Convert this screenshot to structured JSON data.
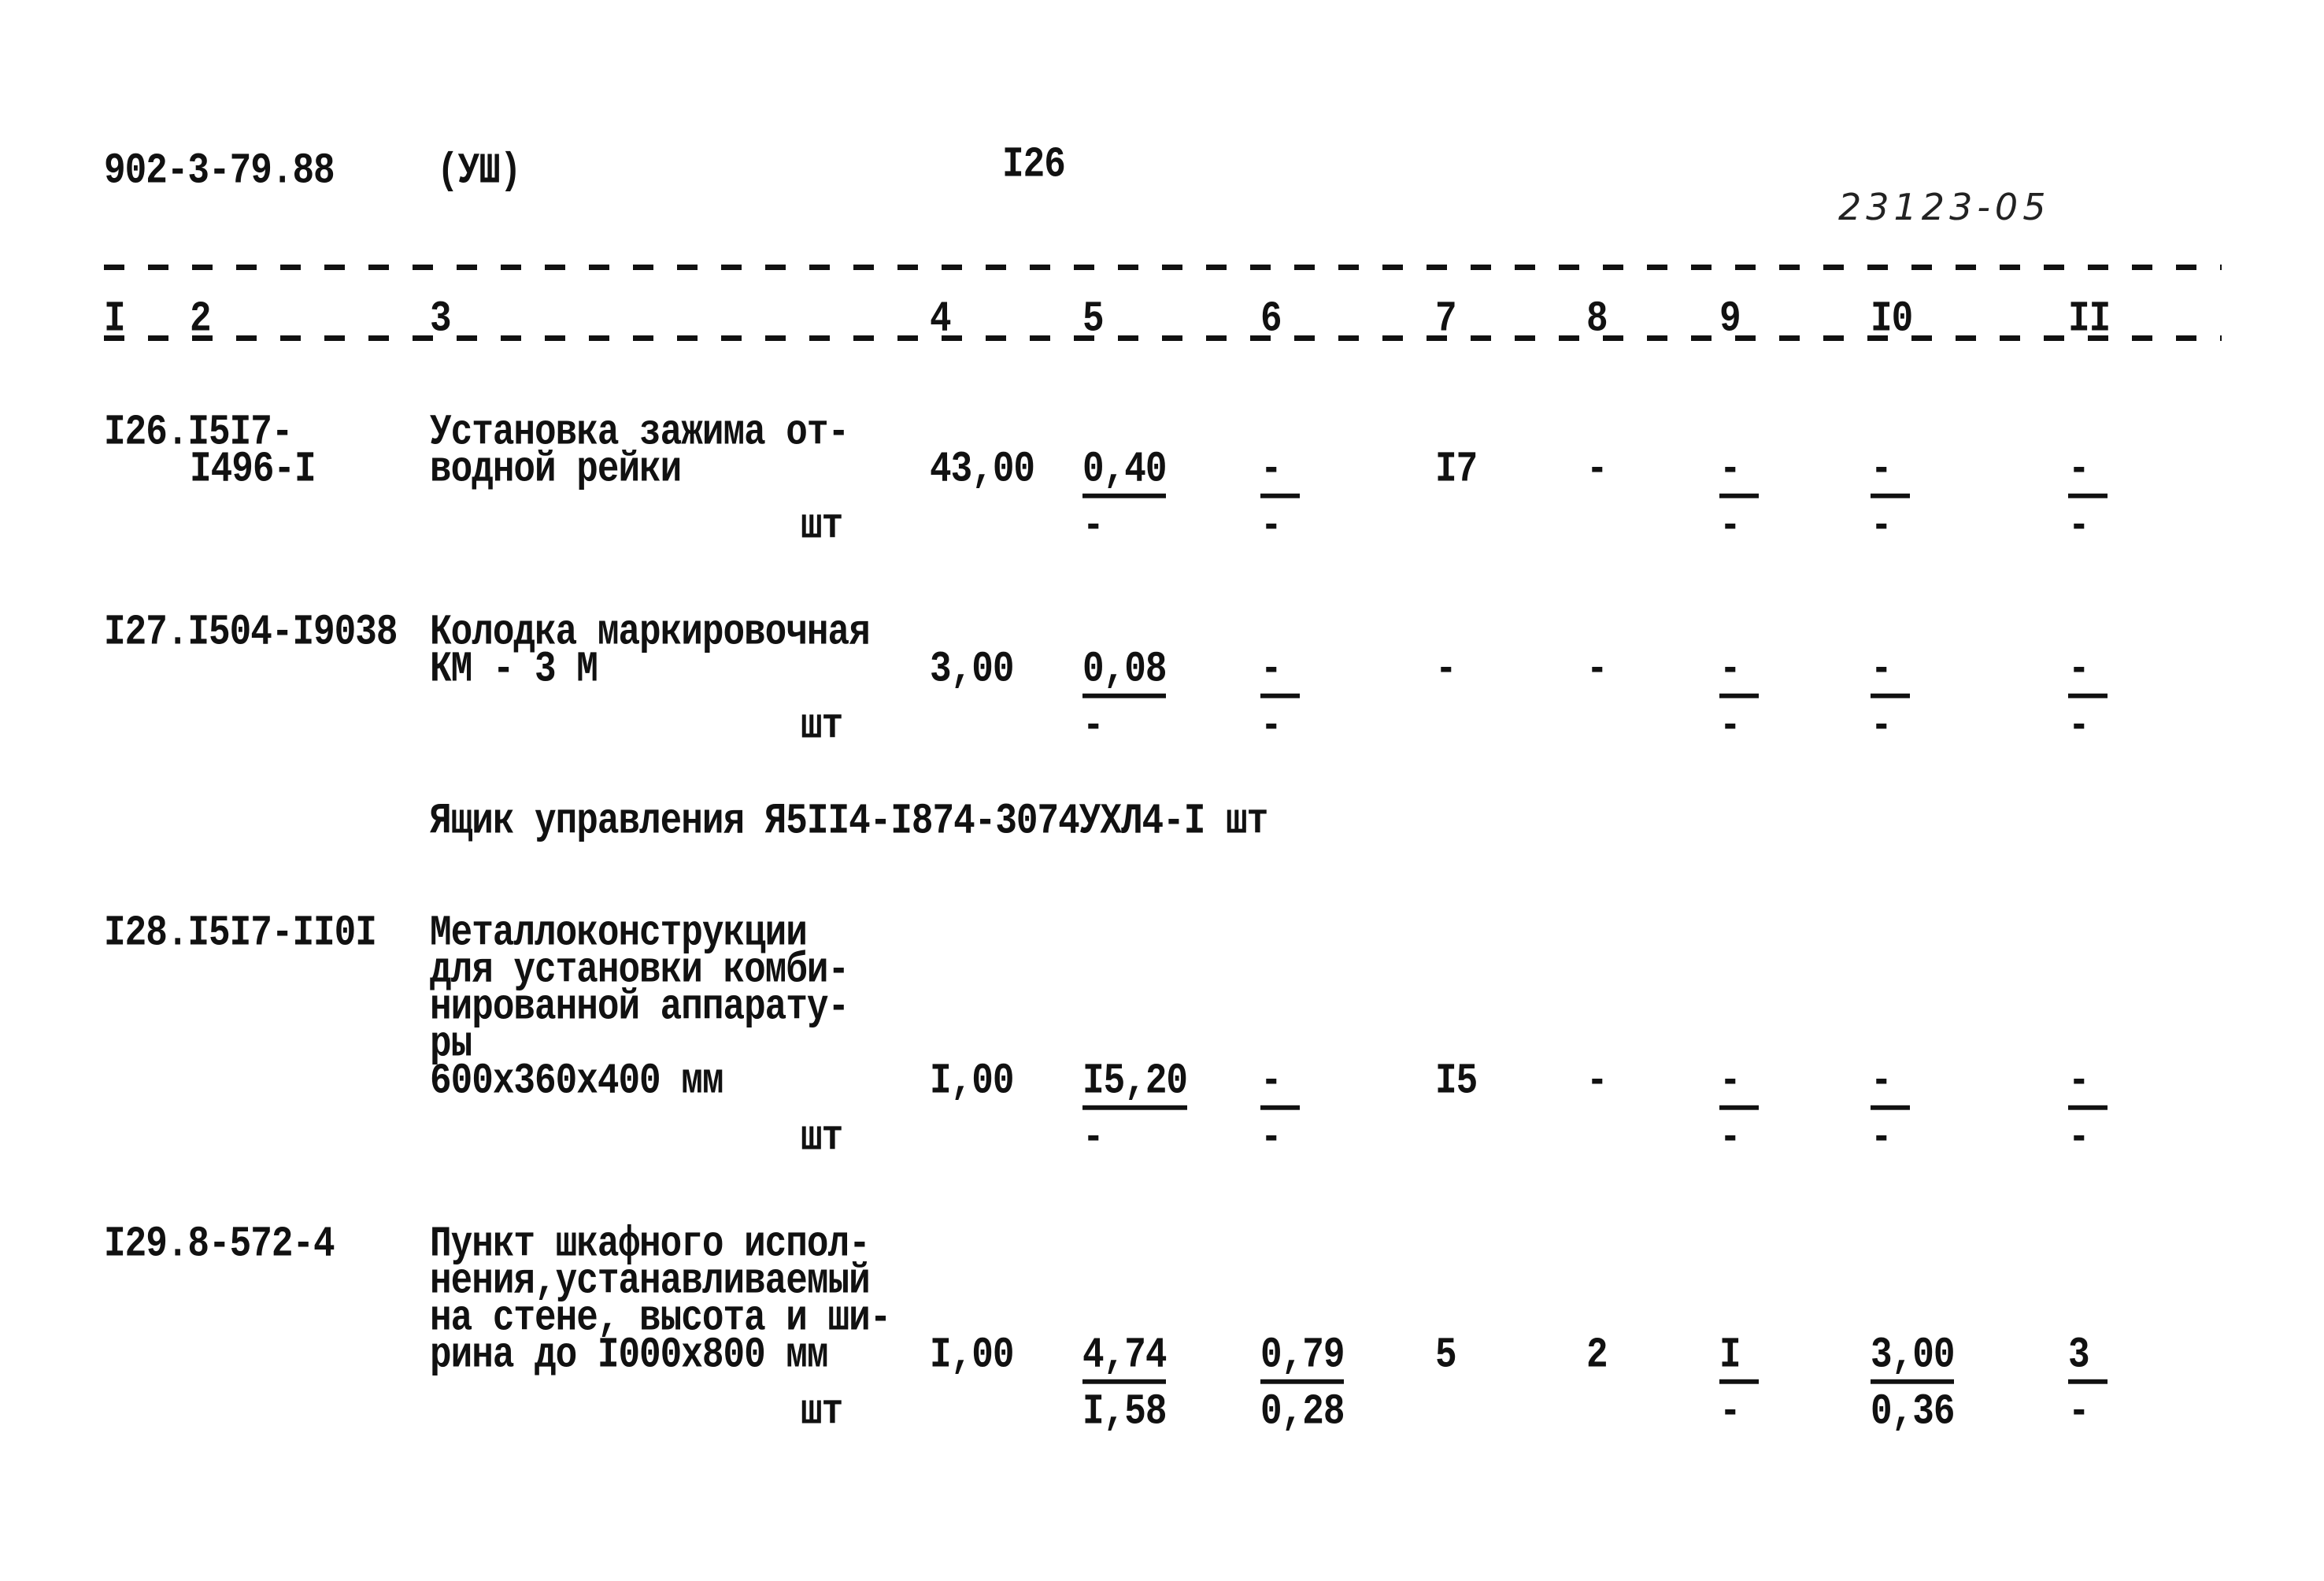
{
  "header": {
    "doc_code": "902-3-79.88",
    "section": "(УШ)",
    "page_number": "I26",
    "handwritten_number": "23123-05"
  },
  "column_numbers": [
    "I",
    "2",
    "3",
    "4",
    "5",
    "6",
    "7",
    "8",
    "9",
    "I0",
    "II"
  ],
  "section_title": "Ящик управления Я5II4-I874-3074УХЛ4-I шт",
  "rows": [
    {
      "code": [
        "I26.I5I7-",
        "I496-I"
      ],
      "description": [
        "Установка зажима от-",
        "водной рейки"
      ],
      "unit": "шт",
      "c4": "43,00",
      "c5": {
        "top": "0,40",
        "bottom": "-"
      },
      "c6": {
        "top": "-",
        "bottom": "-"
      },
      "c7": "I7",
      "c8": "-",
      "c9": {
        "top": "-",
        "bottom": "-"
      },
      "c10": {
        "top": "-",
        "bottom": "-"
      },
      "c11": {
        "top": "-",
        "bottom": "-"
      }
    },
    {
      "code": [
        "I27.I504-I9038"
      ],
      "description": [
        "Колодка маркировочная",
        "КМ - 3 М"
      ],
      "unit": "шт",
      "c4": "3,00",
      "c5": {
        "top": "0,08",
        "bottom": "-"
      },
      "c6": {
        "top": "-",
        "bottom": "-"
      },
      "c7": "-",
      "c8": "-",
      "c9": {
        "top": "-",
        "bottom": "-"
      },
      "c10": {
        "top": "-",
        "bottom": "-"
      },
      "c11": {
        "top": "-",
        "bottom": "-"
      }
    },
    {
      "code": [
        "I28.I5I7-II0I"
      ],
      "description": [
        "Металлоконструкции",
        "для установки комби-",
        "нированной аппарату-",
        "ры",
        "600x360x400 мм"
      ],
      "unit": "шт",
      "c4": "I,00",
      "c5": {
        "top": "I5,20",
        "bottom": "-"
      },
      "c6": {
        "top": "-",
        "bottom": "-"
      },
      "c7": "I5",
      "c8": "-",
      "c9": {
        "top": "-",
        "bottom": "-"
      },
      "c10": {
        "top": "-",
        "bottom": "-"
      },
      "c11": {
        "top": "-",
        "bottom": "-"
      }
    },
    {
      "code": [
        "I29.8-572-4"
      ],
      "description": [
        "Пункт шкафного испол-",
        "нения,устанавливаемый",
        "на стене, высота и ши-",
        "рина до I000x800 мм"
      ],
      "unit": "шт",
      "c4": "I,00",
      "c5": {
        "top": "4,74",
        "bottom": "I,58"
      },
      "c6": {
        "top": "0,79",
        "bottom": "0,28"
      },
      "c7": "5",
      "c8": "2",
      "c9": {
        "top": "I",
        "bottom": "-"
      },
      "c10": {
        "top": "3,00",
        "bottom": "0,36"
      },
      "c11": {
        "top": "3",
        "bottom": "-"
      }
    }
  ]
}
